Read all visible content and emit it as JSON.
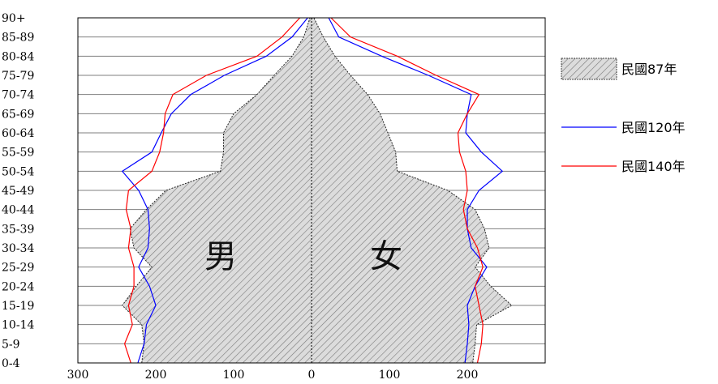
{
  "chart_data": {
    "type": "line",
    "xlim": [
      -300,
      300
    ],
    "xticks": [
      {
        "value": -300,
        "label": "300"
      },
      {
        "value": -200,
        "label": "200"
      },
      {
        "value": -100,
        "label": "100"
      },
      {
        "value": 0,
        "label": "0"
      },
      {
        "value": 100,
        "label": "100"
      },
      {
        "value": 200,
        "label": "200"
      }
    ],
    "age_groups": [
      "0-4",
      "5-9",
      "10-14",
      "15-19",
      "20-24",
      "25-29",
      "30-34",
      "35-39",
      "40-44",
      "45-49",
      "50-54",
      "55-59",
      "60-64",
      "65-69",
      "70-74",
      "75-79",
      "80-84",
      "85-89",
      "90+"
    ],
    "gender_labels": {
      "male": "男",
      "female": "女"
    },
    "series": [
      {
        "name": "民國87年",
        "style": "hatched-area",
        "color": "#d8d8d8",
        "male": [
          218,
          215,
          218,
          243,
          225,
          205,
          228,
          233,
          212,
          187,
          117,
          113,
          113,
          100,
          70,
          48,
          25,
          10,
          2
        ],
        "female": [
          207,
          210,
          212,
          257,
          230,
          210,
          228,
          222,
          210,
          175,
          110,
          108,
          98,
          88,
          72,
          50,
          30,
          15,
          3
        ]
      },
      {
        "name": "民國120年",
        "style": "line",
        "color": "#0000ff",
        "male": [
          223,
          215,
          212,
          200,
          208,
          222,
          210,
          208,
          210,
          222,
          243,
          205,
          193,
          180,
          155,
          112,
          58,
          25,
          5
        ],
        "female": [
          197,
          200,
          202,
          200,
          210,
          225,
          205,
          200,
          200,
          215,
          245,
          218,
          198,
          200,
          205,
          150,
          90,
          35,
          22
        ]
      },
      {
        "name": "民國140年",
        "style": "line",
        "color": "#ff0000",
        "male": [
          232,
          240,
          230,
          235,
          228,
          228,
          235,
          232,
          238,
          235,
          205,
          195,
          190,
          188,
          178,
          135,
          70,
          38,
          15
        ],
        "female": [
          213,
          218,
          220,
          215,
          210,
          220,
          213,
          200,
          195,
          200,
          198,
          190,
          188,
          200,
          215,
          160,
          110,
          50,
          25
        ]
      }
    ]
  }
}
